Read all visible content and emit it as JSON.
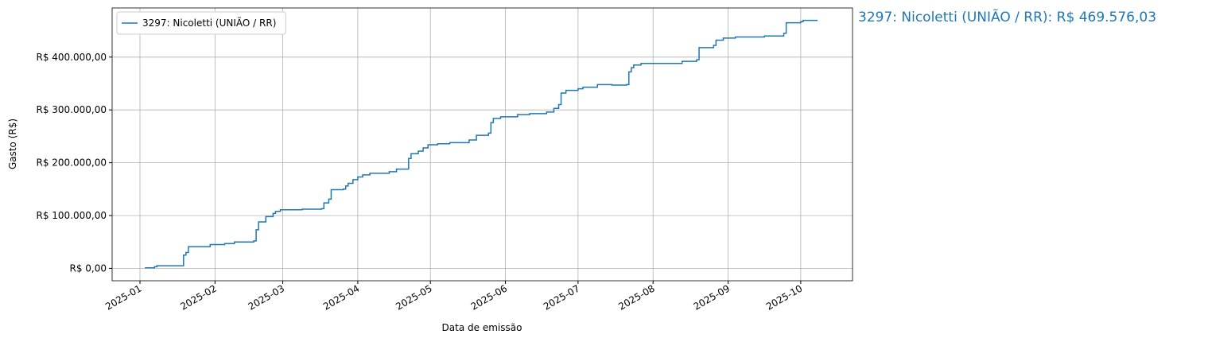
{
  "chart_data": {
    "type": "line",
    "drawstyle": "steps-post",
    "xlabel": "Data de emissão",
    "ylabel": "Gasto (R$)",
    "annotation": "3297: Nicoletti (UNIÃO / RR): R$ 469.576,03",
    "legend": "upper left",
    "grid": true,
    "xlim": [
      20077.5,
      20383.4
    ],
    "xticks": [
      {
        "value": 20089,
        "label": "2025-01"
      },
      {
        "value": 20120,
        "label": "2025-02"
      },
      {
        "value": 20148,
        "label": "2025-03"
      },
      {
        "value": 20179,
        "label": "2025-04"
      },
      {
        "value": 20209,
        "label": "2025-05"
      },
      {
        "value": 20240,
        "label": "2025-06"
      },
      {
        "value": 20270,
        "label": "2025-07"
      },
      {
        "value": 20301,
        "label": "2025-08"
      },
      {
        "value": 20332,
        "label": "2025-09"
      },
      {
        "value": 20362,
        "label": "2025-10"
      }
    ],
    "ylim": [
      -23479,
      493055
    ],
    "yticks": [
      {
        "value": 0,
        "label": "R$ 0,00"
      },
      {
        "value": 100000,
        "label": "R$ 100.000,00"
      },
      {
        "value": 200000,
        "label": "R$ 200.000,00"
      },
      {
        "value": 300000,
        "label": "R$ 300.000,00"
      },
      {
        "value": 400000,
        "label": "R$ 400.000,00"
      }
    ],
    "x": [
      20091,
      20095,
      20096,
      20107,
      20108,
      20109,
      20118,
      20124,
      20128,
      20136,
      20137,
      20138,
      20141,
      20144,
      20145,
      20147,
      20156,
      20164,
      20165,
      20167,
      20168,
      20173,
      20174,
      20175,
      20177,
      20179,
      20181,
      20184,
      20192,
      20195,
      20200,
      20201,
      20204,
      20206,
      20208,
      20212,
      20217,
      20225,
      20228,
      20233,
      20234,
      20235,
      20238,
      20245,
      20250,
      20257,
      20260,
      20262,
      20263,
      20265,
      20270,
      20272,
      20278,
      20284,
      20290,
      20291,
      20292,
      20293,
      20296,
      20313,
      20319,
      20320,
      20326,
      20327,
      20330,
      20335,
      20347,
      20355,
      20356,
      20362,
      20363,
      20369
    ],
    "series": [
      {
        "name": "3297: Nicoletti (UNIÃO / RR)",
        "color": "#1f77b4",
        "values": [
          1000,
          3000,
          5000,
          25000,
          30000,
          41000,
          45000,
          47000,
          50000,
          52000,
          73000,
          88000,
          98000,
          104000,
          108000,
          111000,
          112000,
          113000,
          124000,
          131000,
          149000,
          150000,
          156000,
          161000,
          168000,
          173000,
          177000,
          180000,
          183000,
          188000,
          208000,
          217000,
          222000,
          228000,
          234000,
          236000,
          238000,
          243000,
          252000,
          256000,
          276000,
          284000,
          287000,
          291000,
          293000,
          296000,
          303000,
          310000,
          332000,
          337000,
          340000,
          343000,
          348000,
          347000,
          348000,
          372000,
          380000,
          385000,
          388000,
          392000,
          395000,
          418000,
          422000,
          432000,
          436000,
          438000,
          440000,
          445000,
          465000,
          467000,
          469576.03,
          469576.03
        ]
      }
    ]
  }
}
